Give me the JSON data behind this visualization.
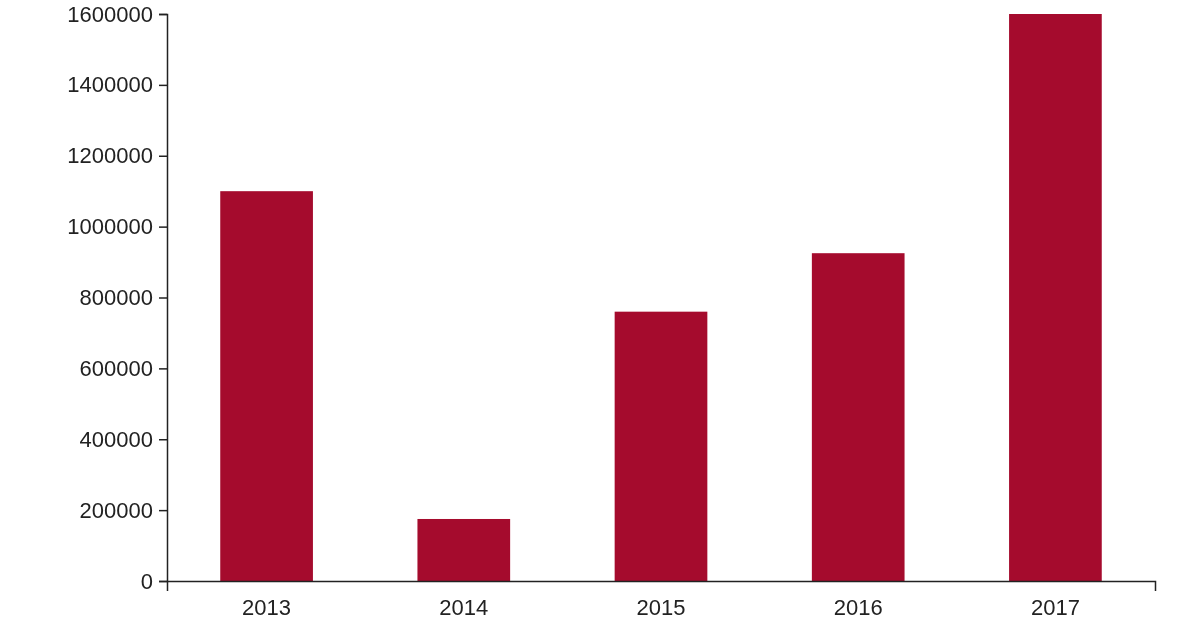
{
  "chart_data": {
    "type": "bar",
    "categories": [
      "2013",
      "2014",
      "2015",
      "2016",
      "2017"
    ],
    "values": [
      1100000,
      175000,
      760000,
      925000,
      1600000
    ],
    "color": "#a50b2d",
    "ylim": [
      0,
      1600000
    ],
    "yticks": [
      0,
      200000,
      400000,
      600000,
      800000,
      1000000,
      1200000,
      1400000,
      1600000
    ],
    "grid": false
  }
}
